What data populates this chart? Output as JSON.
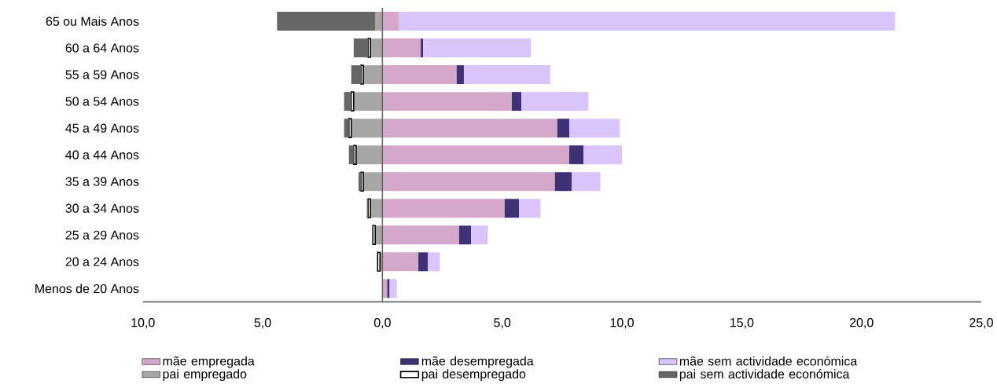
{
  "chart_data": {
    "type": "bar",
    "orientation": "horizontal",
    "stacked": true,
    "categories": [
      "65 ou Mais Anos",
      "60 a 64 Anos",
      "55 a 59 Anos",
      "50 a 54 Anos",
      "45 a 49 Anos",
      "40 a 44 Anos",
      "35 a 39 Anos",
      "30 a 34 Anos",
      "25 a 29 Anos",
      "20 a 24 Anos",
      "Menos de 20 Anos"
    ],
    "series": [
      {
        "name": "mãe empregada",
        "color": "#d5a8cb",
        "values": [
          0.7,
          1.6,
          3.1,
          5.4,
          7.3,
          7.8,
          7.2,
          5.1,
          3.2,
          1.5,
          0.2
        ]
      },
      {
        "name": "mãe desempregada",
        "color": "#3e3276",
        "values": [
          0,
          0.1,
          0.3,
          0.4,
          0.5,
          0.6,
          0.7,
          0.6,
          0.5,
          0.4,
          0.1
        ]
      },
      {
        "name": "mãe sem actividade económica",
        "color": "#d9c4fb",
        "values": [
          20.7,
          4.5,
          3.6,
          2.8,
          2.1,
          1.6,
          1.2,
          0.9,
          0.7,
          0.5,
          0.3
        ]
      },
      {
        "name": "pai empregado",
        "color": "#a6a6a6",
        "values": [
          -0.3,
          -0.5,
          -0.8,
          -1.2,
          -1.3,
          -1.1,
          -0.8,
          -0.5,
          -0.3,
          -0.1,
          null
        ]
      },
      {
        "name": "pai desempregado",
        "color": "#ffffff",
        "values": [
          0,
          -0.1,
          -0.1,
          -0.1,
          -0.1,
          -0.1,
          -0.1,
          -0.1,
          -0.1,
          -0.1,
          0
        ]
      },
      {
        "name": "pai sem actividade económica",
        "color": "#666666",
        "values": [
          -4.1,
          -0.6,
          -0.4,
          -0.3,
          -0.2,
          -0.2,
          -0.1,
          -0.05,
          -0.03,
          0,
          0
        ]
      }
    ],
    "xlim": [
      -10,
      25
    ],
    "xticks": [
      {
        "value": -10,
        "label": "10,0"
      },
      {
        "value": -5,
        "label": "5,0"
      },
      {
        "value": 0,
        "label": "0,0"
      },
      {
        "value": 5,
        "label": "5,0"
      },
      {
        "value": 10,
        "label": "10,0"
      },
      {
        "value": 15,
        "label": "15,0"
      },
      {
        "value": 20,
        "label": "20,0"
      },
      {
        "value": 25,
        "label": "25,0"
      }
    ],
    "legend": "bottom"
  }
}
